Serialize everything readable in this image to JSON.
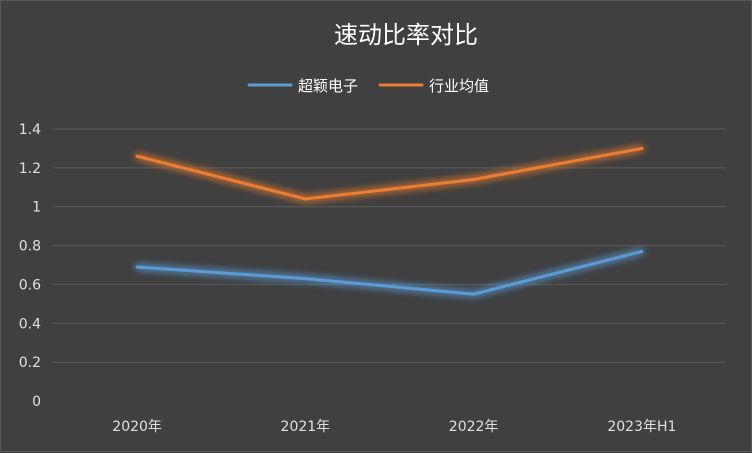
{
  "chart_data": {
    "type": "line",
    "title": "速动比率对比",
    "categories": [
      "2020年",
      "2021年",
      "2022年",
      "2023年H1"
    ],
    "series": [
      {
        "name": "超颖电子",
        "values": [
          0.69,
          0.63,
          0.55,
          0.77
        ],
        "color": "#5b9bd5"
      },
      {
        "name": "行业均值",
        "values": [
          1.26,
          1.04,
          1.14,
          1.3
        ],
        "color": "#ed7d31"
      }
    ],
    "y_ticks": [
      "0",
      "0.2",
      "0.4",
      "0.6",
      "0.8",
      "1",
      "1.2",
      "1.4"
    ],
    "ylim": [
      0,
      1.4
    ],
    "grid": true,
    "legend_position": "top-center",
    "background_color": "#404040"
  }
}
